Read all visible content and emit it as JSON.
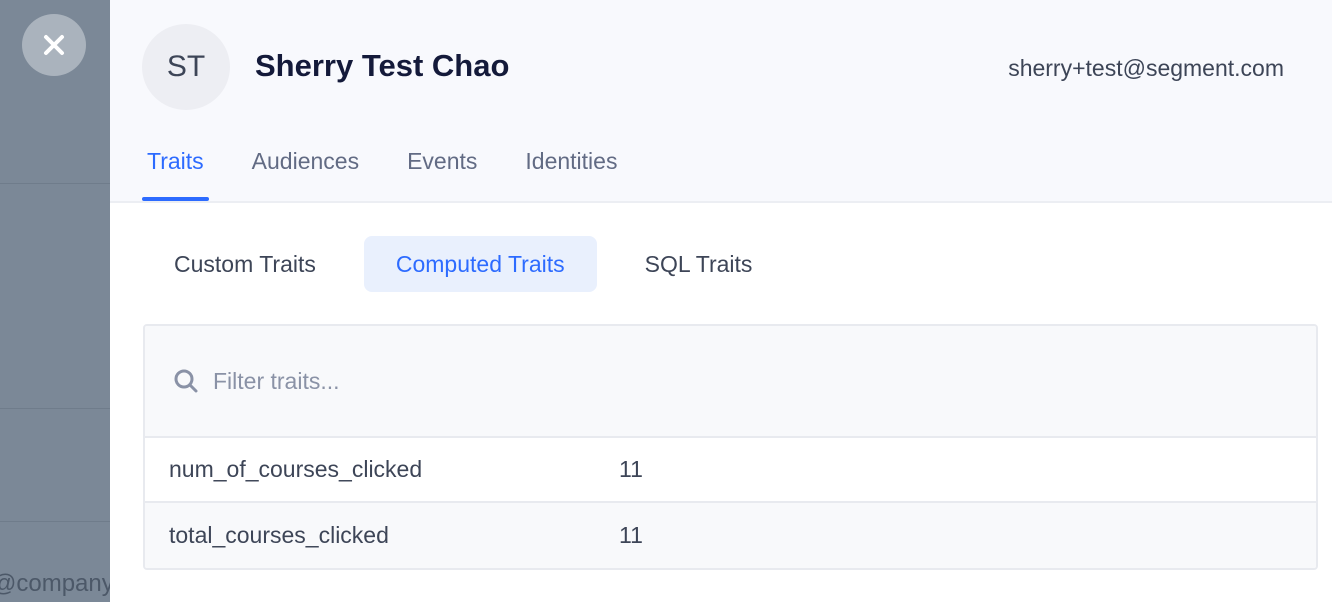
{
  "backdrop": {
    "text": "@company."
  },
  "profile": {
    "initials": "ST",
    "name": "Sherry Test Chao",
    "email": "sherry+test@segment.com"
  },
  "tabs": [
    {
      "label": "Traits",
      "active": true
    },
    {
      "label": "Audiences"
    },
    {
      "label": "Events"
    },
    {
      "label": "Identities"
    }
  ],
  "subtabs": [
    {
      "label": "Custom Traits"
    },
    {
      "label": "Computed Traits",
      "active": true
    },
    {
      "label": "SQL Traits"
    }
  ],
  "search": {
    "placeholder": "Filter traits...",
    "value": ""
  },
  "traits": [
    {
      "key": "num_of_courses_clicked",
      "value": "11"
    },
    {
      "key": "total_courses_clicked",
      "value": "11"
    }
  ],
  "colors": {
    "accent": "#2d6bff",
    "backdrop": "#7b8897"
  }
}
